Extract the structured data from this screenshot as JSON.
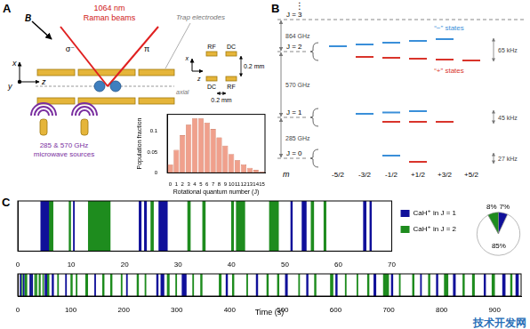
{
  "panel_labels": [
    "A",
    "B",
    "C"
  ],
  "diagram_A": {
    "laser": "1064 nm",
    "beams": "Raman beams",
    "field": "B",
    "polarizations": [
      "σ⁻",
      "π"
    ],
    "axes": {
      "vertical": "x",
      "depth": "y",
      "axial": "z"
    },
    "electrodes": "Trap electrodes",
    "axial_label": "axial",
    "cross_section": {
      "top": [
        "RF",
        "DC"
      ],
      "bottom": [
        "DC",
        "RF"
      ],
      "axes": {
        "vertical": "x",
        "horizontal": "z"
      },
      "vertical_gap": "0.2 mm",
      "horizontal_gap": "0.2 mm"
    },
    "microwave": [
      "285 & 570 GHz",
      "microwave sources"
    ]
  },
  "diagram_B": {
    "ellipsis": "⋮",
    "levels": [
      {
        "label": "J = 3"
      },
      {
        "label": "J = 2",
        "splitting": "65 kHz"
      },
      {
        "label": "J = 1",
        "splitting": "45 kHz"
      },
      {
        "label": "J = 0",
        "splitting": "27 kHz"
      }
    ],
    "gaps": [
      "864 GHz",
      "570 GHz",
      "285 GHz"
    ],
    "minus_states": "“−” states",
    "plus_states": "“+” states",
    "m_label": "m",
    "m_values": [
      "-5/2",
      "-3/2",
      "-1/2",
      "+1/2",
      "+3/2",
      "+5/2"
    ]
  },
  "chart_data": [
    {
      "type": "bar",
      "x_label": "Rotational quantum number (J)",
      "y_label": "Population fraction",
      "categories": [
        0,
        1,
        2,
        3,
        4,
        5,
        6,
        7,
        8,
        9,
        10,
        11,
        12,
        13,
        14,
        15
      ],
      "values": [
        0.02,
        0.055,
        0.09,
        0.115,
        0.13,
        0.13,
        0.12,
        0.105,
        0.085,
        0.065,
        0.045,
        0.03,
        0.02,
        0.012,
        0.007,
        0.003
      ],
      "color": "#f0a08c",
      "ylim": [
        0,
        0.14
      ],
      "yticks": [
        0,
        0.05,
        0.1
      ],
      "grid": false
    },
    {
      "type": "pie",
      "values": [
        7,
        85,
        8
      ],
      "colors": [
        "#10109a",
        "#ffffff",
        "#1e8c1e"
      ],
      "value_labels": [
        "7%",
        "85%",
        "8%"
      ],
      "data_labels": true
    },
    {
      "type": "bar",
      "orientation": "horizontal",
      "tick_labels": "x",
      "grid": false,
      "legend": "right",
      "xlim": [
        0,
        70
      ],
      "xticks": [
        0,
        10,
        20,
        30,
        40,
        50,
        60,
        70
      ],
      "series": [
        {
          "name": "CaH⁺ in J = 1",
          "color": "#10109a",
          "values": [
            [
              4.3,
              5.8
            ],
            [
              10.4,
              10.6
            ],
            [
              22.7,
              23.1
            ],
            [
              23.7,
              24.1
            ],
            [
              26.4,
              28.0
            ],
            [
              51.1,
              51.4
            ],
            [
              53.2,
              54.0
            ],
            [
              64.7,
              65.2
            ],
            [
              65.9,
              66.2
            ]
          ]
        },
        {
          "name": "CaH⁺ in J = 2",
          "color": "#1e8c1e",
          "values": [
            [
              5.8,
              6.6
            ],
            [
              9.6,
              9.9
            ],
            [
              13.2,
              17.3
            ],
            [
              24.9,
              25.4
            ],
            [
              31.8,
              32.3
            ],
            [
              34.6,
              35.1
            ],
            [
              40.0,
              40.4
            ],
            [
              40.9,
              42.5
            ],
            [
              47.1,
              48.8
            ],
            [
              54.9,
              55.4
            ],
            [
              57.3,
              57.7
            ]
          ]
        }
      ]
    },
    {
      "type": "bar",
      "orientation": "horizontal",
      "tick_labels": "x",
      "grid": false,
      "x_label": "Time (s)",
      "xlim": [
        0,
        950
      ],
      "xticks": [
        0,
        100,
        200,
        300,
        400,
        500,
        600,
        700,
        800,
        900
      ],
      "series": [
        {
          "name": "CaH⁺ in J = 1",
          "color": "#10109a",
          "values": [
            [
              4.3,
              5.8
            ],
            [
              10.4,
              10.6
            ],
            [
              22.7,
              23.1
            ],
            [
              23.7,
              24.1
            ],
            [
              26.4,
              28.0
            ],
            [
              51.1,
              51.4
            ],
            [
              53.2,
              54.0
            ],
            [
              64.7,
              65.2
            ],
            [
              65.9,
              66.2
            ],
            [
              90,
              92
            ],
            [
              145,
              147
            ],
            [
              205,
              207
            ],
            [
              262,
              265
            ],
            [
              270,
              276
            ],
            [
              310,
              318
            ],
            [
              393,
              396
            ],
            [
              450,
              453
            ],
            [
              505,
              509
            ],
            [
              545,
              548
            ],
            [
              600,
              603
            ],
            [
              672,
              676
            ],
            [
              705,
              708
            ],
            [
              760,
              762
            ],
            [
              790,
              793
            ],
            [
              822,
              826
            ],
            [
              880,
              883
            ],
            [
              915,
              920
            ],
            [
              940,
              945
            ]
          ]
        },
        {
          "name": "CaH⁺ in J = 2",
          "color": "#1e8c1e",
          "values": [
            [
              5.8,
              6.6
            ],
            [
              9.6,
              9.9
            ],
            [
              13.2,
              17.3
            ],
            [
              24.9,
              25.4
            ],
            [
              31.8,
              32.3
            ],
            [
              34.6,
              35.1
            ],
            [
              40.0,
              40.4
            ],
            [
              40.9,
              42.5
            ],
            [
              47.1,
              48.8
            ],
            [
              54.9,
              55.4
            ],
            [
              57.3,
              57.7
            ],
            [
              75,
              77
            ],
            [
              100,
              103
            ],
            [
              110,
              112
            ],
            [
              128,
              132
            ],
            [
              160,
              163
            ],
            [
              175,
              178
            ],
            [
              195,
              197
            ],
            [
              225,
              228
            ],
            [
              240,
              242
            ],
            [
              282,
              286
            ],
            [
              298,
              300
            ],
            [
              330,
              332
            ],
            [
              345,
              348
            ],
            [
              380,
              384
            ],
            [
              405,
              408
            ],
            [
              432,
              434
            ],
            [
              470,
              473
            ],
            [
              490,
              493
            ],
            [
              530,
              532
            ],
            [
              560,
              563
            ],
            [
              590,
              595
            ],
            [
              618,
              620
            ],
            [
              640,
              642
            ],
            [
              660,
              663
            ],
            [
              690,
              700
            ],
            [
              720,
              722
            ],
            [
              745,
              748
            ],
            [
              775,
              778
            ],
            [
              805,
              812
            ],
            [
              840,
              843
            ],
            [
              858,
              862
            ],
            [
              895,
              900
            ],
            [
              930,
              933
            ]
          ]
        }
      ]
    }
  ],
  "watermark": "技术开发网"
}
